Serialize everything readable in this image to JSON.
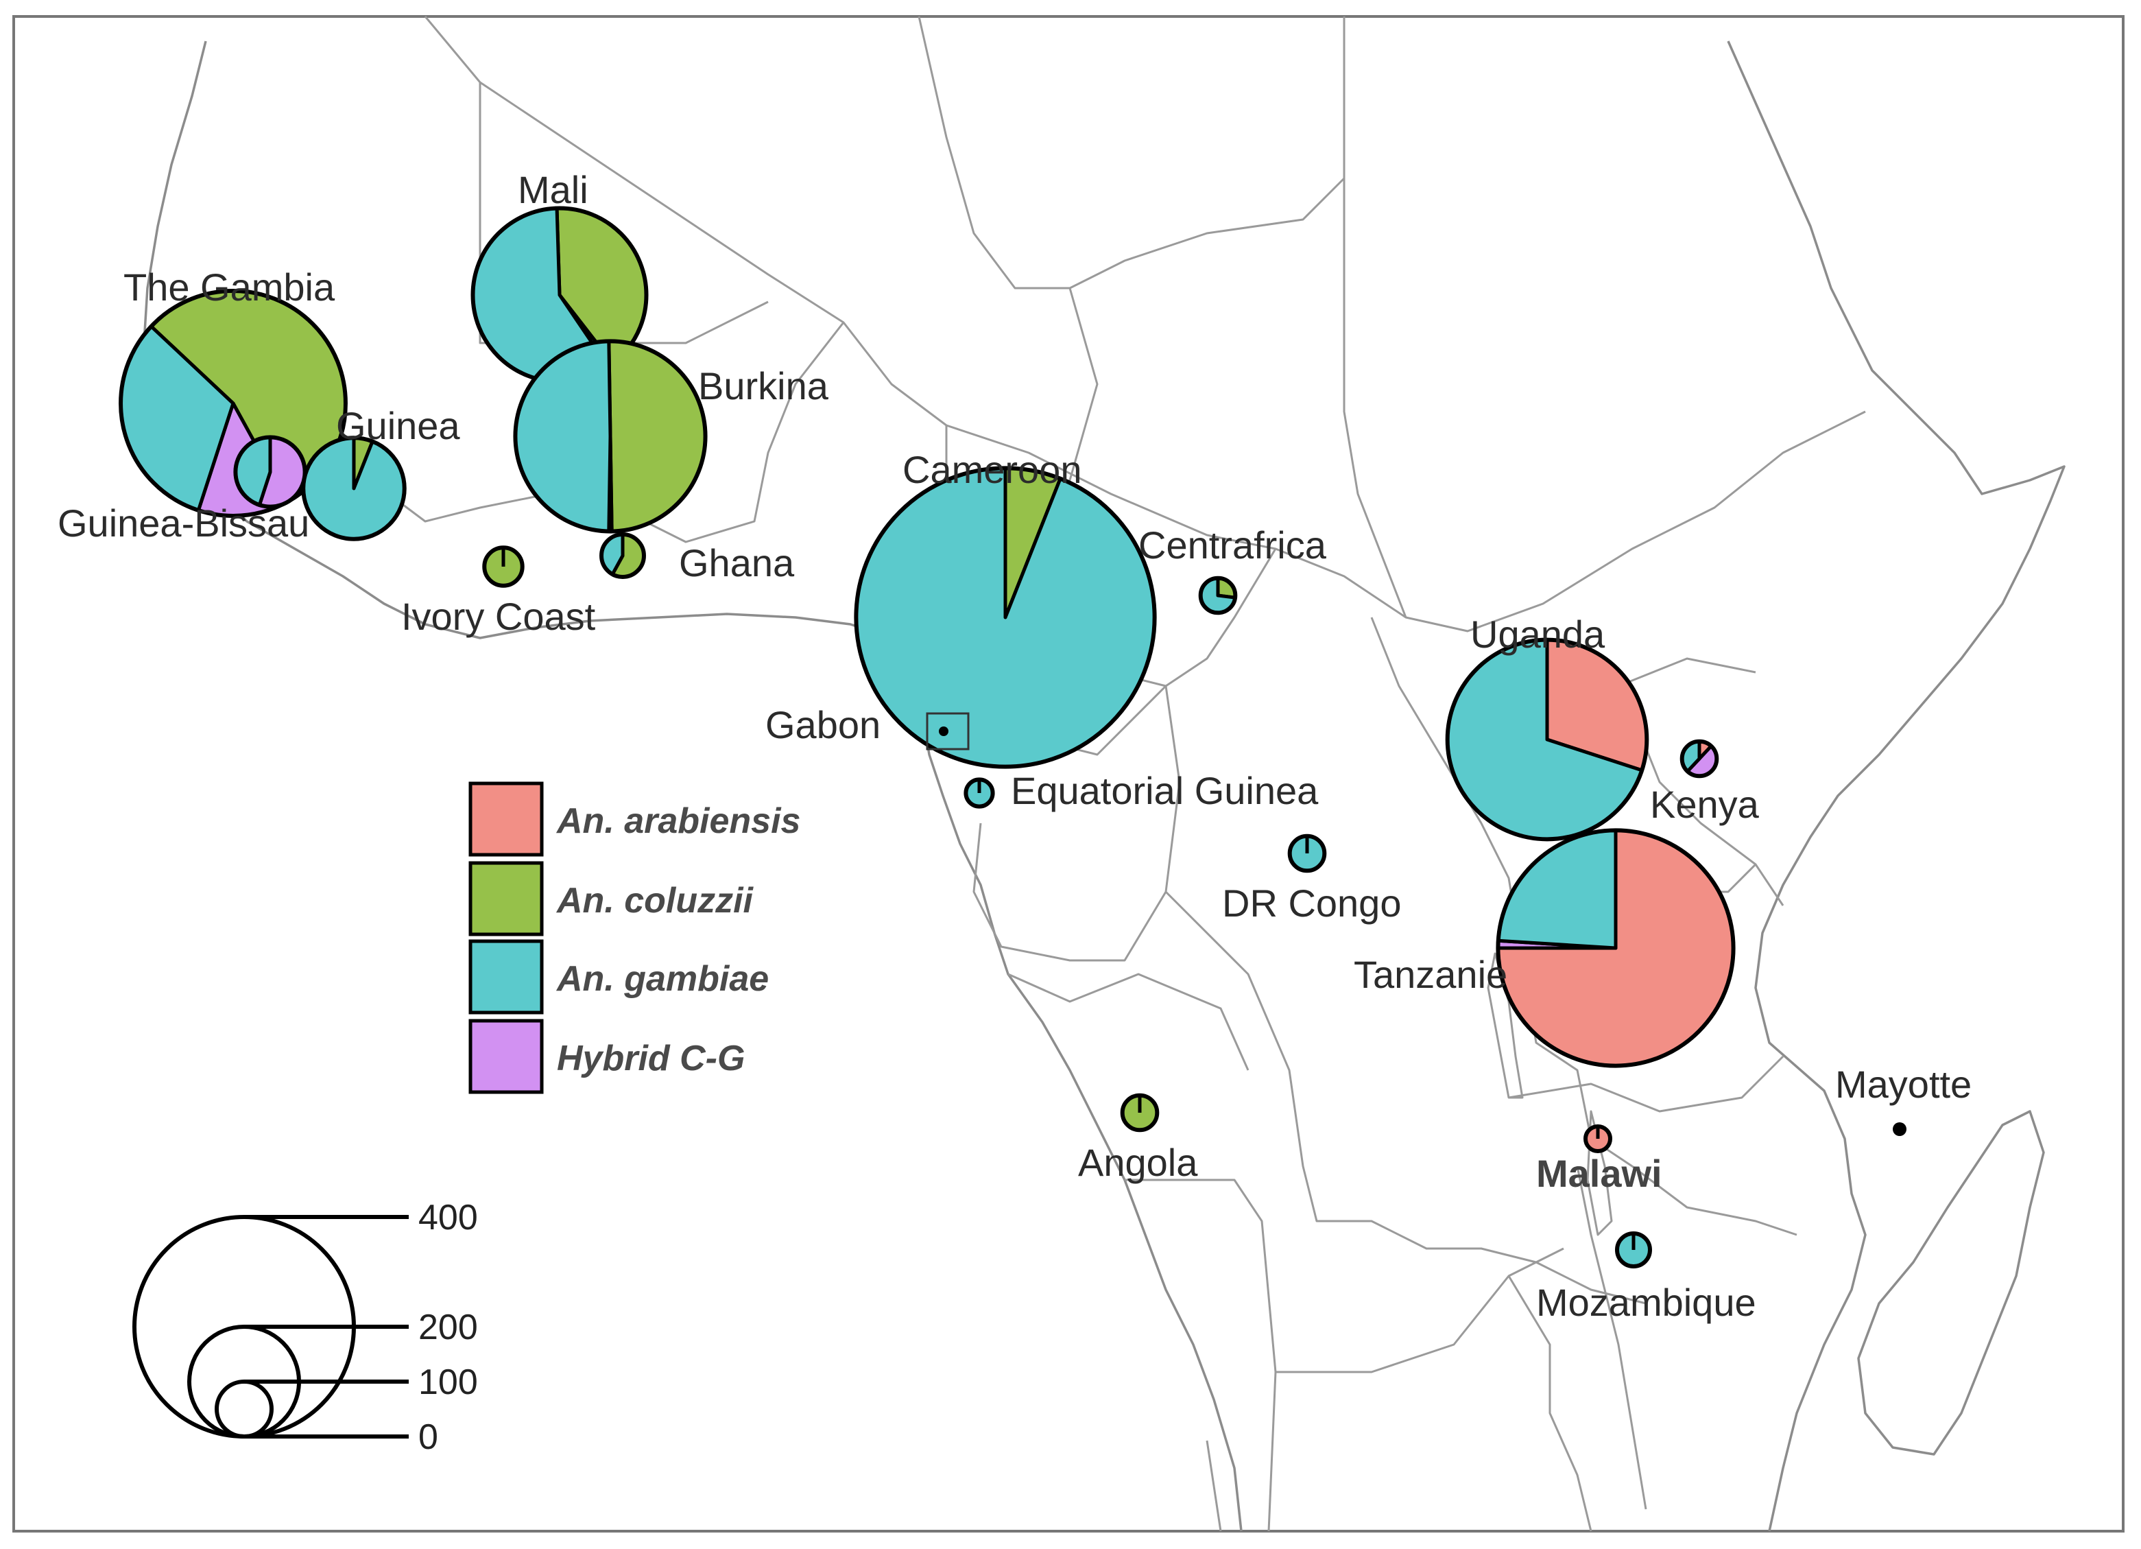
{
  "colors": {
    "arabiensis": "#F28F86",
    "coluzzii": "#96C14A",
    "gambiae": "#5BCACC",
    "hybrid": "#D291F2"
  },
  "legend": {
    "items": [
      {
        "key": "arabiensis",
        "label": "An. arabiensis"
      },
      {
        "key": "coluzzii",
        "label": "An. coluzzii"
      },
      {
        "key": "gambiae",
        "label": "An. gambiae"
      },
      {
        "key": "hybrid",
        "label": "Hybrid C-G"
      }
    ]
  },
  "size_scale": {
    "ticks": [
      {
        "label": "400",
        "value": 400
      },
      {
        "label": "200",
        "value": 200
      },
      {
        "label": "100",
        "value": 100
      },
      {
        "label": "0",
        "value": 0
      }
    ]
  },
  "sites": [
    {
      "id": "the-gambia",
      "name": "The Gambia",
      "total": 420,
      "slices": {
        "coluzzii": 0.55,
        "gambiae": 0.32,
        "hybrid": 0.13
      }
    },
    {
      "id": "guinea-bissau",
      "name": "Guinea-Bissau",
      "total": 40,
      "slices": {
        "gambiae": 0.45,
        "hybrid": 0.55
      }
    },
    {
      "id": "guinea",
      "name": "Guinea",
      "total": 85,
      "slices": {
        "coluzzii": 0.06,
        "gambiae": 0.94
      }
    },
    {
      "id": "mali",
      "name": "Mali",
      "total": 250,
      "slices": {
        "coluzzii": 0.4,
        "gambiae": 0.59,
        "hybrid": 0.01
      }
    },
    {
      "id": "burkina",
      "name": "Burkina",
      "total": 300,
      "slices": {
        "coluzzii": 0.5,
        "gambiae": 0.495,
        "hybrid": 0.005
      }
    },
    {
      "id": "ivory-coast",
      "name": "Ivory Coast",
      "total": 12,
      "slices": {
        "coluzzii": 1.0
      }
    },
    {
      "id": "ghana",
      "name": "Ghana",
      "total": 15,
      "slices": {
        "coluzzii": 0.58,
        "gambiae": 0.42
      }
    },
    {
      "id": "cameroon",
      "name": "Cameroon",
      "total": 740,
      "slices": {
        "coluzzii": 0.06,
        "gambiae": 0.94
      }
    },
    {
      "id": "centrafrica",
      "name": "Centrafrica",
      "total": 10,
      "slices": {
        "coluzzii": 0.27,
        "gambiae": 0.73
      }
    },
    {
      "id": "gabon",
      "name": "Gabon",
      "total": 0,
      "slices": {}
    },
    {
      "id": "equatorial-guinea",
      "name": "Equatorial Guinea",
      "total": 6,
      "slices": {
        "gambiae": 1.0
      }
    },
    {
      "id": "uganda",
      "name": "Uganda",
      "total": 330,
      "slices": {
        "arabiensis": 0.3,
        "gambiae": 0.7
      }
    },
    {
      "id": "kenya",
      "name": "Kenya",
      "total": 10,
      "slices": {
        "arabiensis": 0.12,
        "gambiae": 0.38,
        "hybrid": 0.5
      }
    },
    {
      "id": "dr-congo",
      "name": "DR Congo",
      "total": 10,
      "slices": {
        "gambiae": 1.0
      }
    },
    {
      "id": "tanzanie",
      "name": "Tanzanie",
      "total": 460,
      "slices": {
        "arabiensis": 0.75,
        "gambiae": 0.24,
        "hybrid": 0.01
      }
    },
    {
      "id": "angola",
      "name": "Angola",
      "total": 10,
      "slices": {
        "coluzzii": 1.0
      }
    },
    {
      "id": "malawi",
      "name": "Malawi",
      "total": 4,
      "slices": {
        "arabiensis": 1.0
      }
    },
    {
      "id": "mozambique",
      "name": "Mozambique",
      "total": 9,
      "slices": {
        "gambiae": 1.0
      }
    },
    {
      "id": "mayotte",
      "name": "Mayotte",
      "total": 0,
      "slices": {}
    }
  ]
}
